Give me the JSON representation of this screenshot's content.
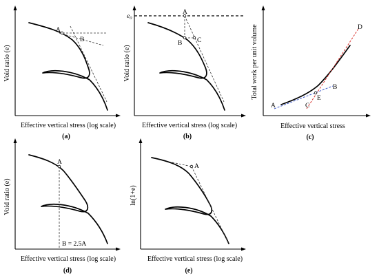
{
  "panels": [
    {
      "id": "a",
      "label": "(a)",
      "xlabel": "Effective vertical stress (log scale)",
      "ylabel": "Void ratio (e)",
      "points": [
        "A",
        "B"
      ]
    },
    {
      "id": "b",
      "label": "(b)",
      "xlabel": "Effective vertical stress (log scale)",
      "ylabel": "Void ratio (e)",
      "points": [
        "A",
        "B",
        "C"
      ],
      "reference_label": "e",
      "reference_subscript": "0"
    },
    {
      "id": "c",
      "label": "(c)",
      "xlabel": "Effective vertical stress",
      "ylabel": "Total work per unit volume",
      "points": [
        "A",
        "B",
        "C",
        "D",
        "E"
      ],
      "colors": {
        "pre_line": "#3a56c8",
        "post_line": "#d9302c"
      }
    },
    {
      "id": "d",
      "label": "(d)",
      "xlabel": "Effective vertical stress (log scale)",
      "ylabel": "Void ratio (e)",
      "points": [
        "A"
      ],
      "annotation": "B = 2.5A"
    },
    {
      "id": "e",
      "label": "(e)",
      "xlabel": "Effective vertical stress (log scale)",
      "ylabel": "ln(1+e)",
      "points": [
        "A"
      ]
    }
  ]
}
